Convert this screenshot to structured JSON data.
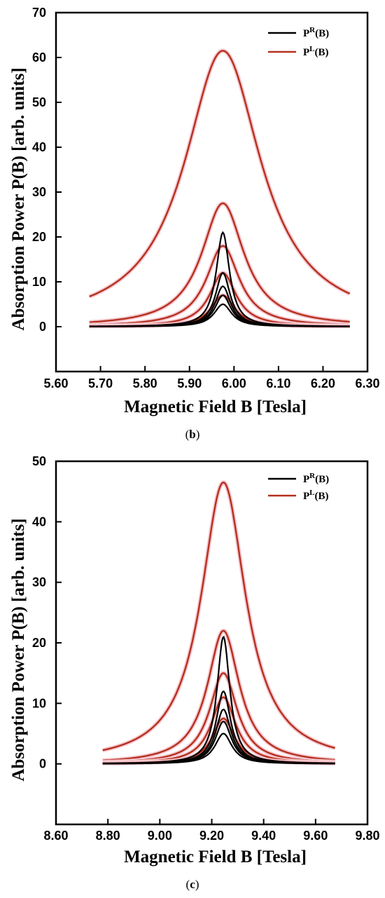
{
  "figures": [
    {
      "caption_letter": "b",
      "chart_data": {
        "type": "line",
        "xlabel": "Magnetic Field B [Tesla]",
        "ylabel": "Absorption Power P(B) [arb. units]",
        "xlim": [
          5.6,
          6.3
        ],
        "ylim": [
          -10,
          70
        ],
        "xticks": [
          "5.60",
          "5.70",
          "5.80",
          "5.90",
          "6.00",
          "6.10",
          "6.20",
          "6.30"
        ],
        "yticks": [
          "0",
          "10",
          "20",
          "30",
          "40",
          "50",
          "60",
          "70"
        ],
        "legend_position": "top-right",
        "legend": [
          {
            "label_main": "P",
            "label_sup": "R",
            "label_rest": "(B)",
            "color": "#000000"
          },
          {
            "label_main": "P",
            "label_sup": "L",
            "label_rest": "(B)",
            "color": "#b5301f"
          }
        ],
        "x_range": [
          5.675,
          6.26
        ],
        "center": 5.975,
        "series": [
          {
            "group": "R",
            "peak": 21,
            "hwhm": 0.018
          },
          {
            "group": "R",
            "peak": 12,
            "hwhm": 0.02
          },
          {
            "group": "R",
            "peak": 9,
            "hwhm": 0.021
          },
          {
            "group": "R",
            "peak": 7,
            "hwhm": 0.022
          },
          {
            "group": "R",
            "peak": 5,
            "hwhm": 0.024
          },
          {
            "group": "L",
            "peak": 61.5,
            "hwhm": 0.105
          },
          {
            "group": "L",
            "peak": 27.5,
            "hwhm": 0.058
          },
          {
            "group": "L",
            "peak": 18,
            "hwhm": 0.045
          },
          {
            "group": "L",
            "peak": 12,
            "hwhm": 0.036
          },
          {
            "group": "L",
            "peak": 7,
            "hwhm": 0.032
          }
        ]
      }
    },
    {
      "caption_letter": "c",
      "chart_data": {
        "type": "line",
        "xlabel": "Magnetic Field B [Tesla]",
        "ylabel": "Absorption Power P(B) [arb. units]",
        "xlim": [
          8.6,
          9.8
        ],
        "ylim": [
          -10,
          50
        ],
        "xticks": [
          "8.60",
          "8.80",
          "9.00",
          "9.20",
          "9.40",
          "9.60",
          "9.80"
        ],
        "yticks": [
          "0",
          "10",
          "20",
          "30",
          "40",
          "50"
        ],
        "legend_position": "top-right",
        "legend": [
          {
            "label_main": "P",
            "label_sup": "R",
            "label_rest": "(B)",
            "color": "#000000"
          },
          {
            "label_main": "P",
            "label_sup": "L",
            "label_rest": "(B)",
            "color": "#b5301f"
          }
        ],
        "x_range": [
          8.78,
          9.675
        ],
        "center": 9.245,
        "series": [
          {
            "group": "R",
            "peak": 21,
            "hwhm": 0.03
          },
          {
            "group": "R",
            "peak": 12,
            "hwhm": 0.034
          },
          {
            "group": "R",
            "peak": 9,
            "hwhm": 0.036
          },
          {
            "group": "R",
            "peak": 7,
            "hwhm": 0.038
          },
          {
            "group": "R",
            "peak": 5,
            "hwhm": 0.04
          },
          {
            "group": "L",
            "peak": 46.5,
            "hwhm": 0.105
          },
          {
            "group": "L",
            "peak": 22,
            "hwhm": 0.075
          },
          {
            "group": "L",
            "peak": 15,
            "hwhm": 0.065
          },
          {
            "group": "L",
            "peak": 11,
            "hwhm": 0.058
          },
          {
            "group": "L",
            "peak": 7.5,
            "hwhm": 0.052
          }
        ]
      }
    }
  ]
}
